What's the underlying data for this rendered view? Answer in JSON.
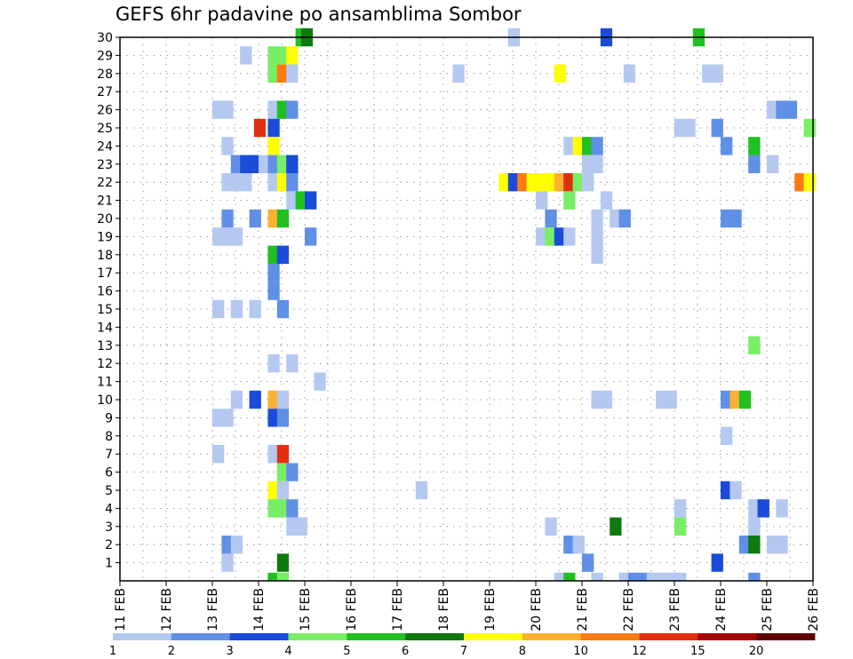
{
  "title": "GEFS 6hr padavine po ansamblima Sombor",
  "chart_data": {
    "type": "heatmap",
    "title": "GEFS 6hr padavine po ansamblima Sombor",
    "x_tick_labels": [
      "11 FEB",
      "12 FEB",
      "13 FEB",
      "14 FEB",
      "15 FEB",
      "16 FEB",
      "17 FEB",
      "18 FEB",
      "19 FEB",
      "20 FEB",
      "21 FEB",
      "22 FEB",
      "23 FEB",
      "24 FEB",
      "25 FEB",
      "26 FEB"
    ],
    "y_tick_labels": [
      "1",
      "2",
      "3",
      "4",
      "5",
      "6",
      "7",
      "8",
      "9",
      "10",
      "11",
      "12",
      "13",
      "14",
      "15",
      "16",
      "17",
      "18",
      "19",
      "20",
      "21",
      "22",
      "23",
      "24",
      "25",
      "26",
      "27",
      "28",
      "29",
      "30"
    ],
    "x_range": [
      "11 FEB 00Z",
      "26 FEB 00Z"
    ],
    "y_range": [
      0,
      30
    ],
    "step": "6hr",
    "grid": true,
    "legend_position": "bottom",
    "colorbar": {
      "labels": [
        "1",
        "2",
        "3",
        "4",
        "5",
        "6",
        "7",
        "8",
        "10",
        "12",
        "15",
        "20"
      ],
      "colors": [
        "#b4c8f0",
        "#6090e6",
        "#1a4cd9",
        "#78ee64",
        "#20c020",
        "#0e7a0e",
        "#ffff00",
        "#ffb030",
        "#ff7a10",
        "#e03010",
        "#a50000",
        "#600000"
      ]
    },
    "cells": [
      [
        14.8,
        30,
        5
      ],
      [
        14.92,
        30,
        6
      ],
      [
        19.4,
        30,
        1
      ],
      [
        21.4,
        30,
        3
      ],
      [
        23.4,
        30,
        5
      ],
      [
        13.6,
        29,
        1
      ],
      [
        14.2,
        29,
        4
      ],
      [
        14.4,
        29,
        4
      ],
      [
        14.6,
        29,
        7
      ],
      [
        14.2,
        28,
        4
      ],
      [
        14.4,
        28,
        9
      ],
      [
        14.6,
        28,
        1
      ],
      [
        18.2,
        28,
        1
      ],
      [
        20.4,
        28,
        7
      ],
      [
        21.9,
        28,
        1
      ],
      [
        23.6,
        28,
        1
      ],
      [
        23.8,
        28,
        1
      ],
      [
        13.0,
        26,
        1
      ],
      [
        13.2,
        26,
        1
      ],
      [
        14.2,
        26,
        1
      ],
      [
        14.4,
        26,
        5
      ],
      [
        14.6,
        26,
        2
      ],
      [
        25.0,
        26,
        1
      ],
      [
        25.2,
        26,
        2
      ],
      [
        25.4,
        26,
        2
      ],
      [
        13.9,
        25,
        10
      ],
      [
        14.2,
        25,
        3
      ],
      [
        23.0,
        25,
        1
      ],
      [
        23.2,
        25,
        1
      ],
      [
        23.8,
        25,
        2
      ],
      [
        25.8,
        25,
        4
      ],
      [
        13.2,
        24,
        1
      ],
      [
        14.2,
        24,
        7
      ],
      [
        20.6,
        24,
        1
      ],
      [
        20.8,
        24,
        7
      ],
      [
        21.0,
        24,
        5
      ],
      [
        21.2,
        24,
        2
      ],
      [
        24.0,
        24,
        2
      ],
      [
        24.6,
        24,
        5
      ],
      [
        13.4,
        23,
        2
      ],
      [
        13.6,
        23,
        3
      ],
      [
        13.8,
        23,
        3
      ],
      [
        14.0,
        23,
        1
      ],
      [
        14.2,
        23,
        2
      ],
      [
        14.4,
        23,
        4
      ],
      [
        14.6,
        23,
        3
      ],
      [
        21.0,
        23,
        1
      ],
      [
        21.2,
        23,
        1
      ],
      [
        24.6,
        23,
        2
      ],
      [
        25.0,
        23,
        1
      ],
      [
        13.2,
        22,
        1
      ],
      [
        13.4,
        22,
        1
      ],
      [
        13.6,
        22,
        1
      ],
      [
        14.2,
        22,
        1
      ],
      [
        14.4,
        22,
        7
      ],
      [
        14.6,
        22,
        2
      ],
      [
        19.2,
        22,
        7
      ],
      [
        19.4,
        22,
        3
      ],
      [
        19.6,
        22,
        9
      ],
      [
        19.8,
        22,
        7
      ],
      [
        20.0,
        22,
        7
      ],
      [
        20.2,
        22,
        7
      ],
      [
        20.4,
        22,
        8
      ],
      [
        20.6,
        22,
        10
      ],
      [
        20.8,
        22,
        4
      ],
      [
        21.0,
        22,
        1
      ],
      [
        25.6,
        22,
        9
      ],
      [
        25.8,
        22,
        7
      ],
      [
        14.6,
        21,
        1
      ],
      [
        14.8,
        21,
        5
      ],
      [
        15.0,
        21,
        3
      ],
      [
        20.0,
        21,
        1
      ],
      [
        20.6,
        21,
        4
      ],
      [
        21.4,
        21,
        1
      ],
      [
        13.2,
        20,
        2
      ],
      [
        13.8,
        20,
        2
      ],
      [
        14.2,
        20,
        8
      ],
      [
        14.4,
        20,
        5
      ],
      [
        20.2,
        20,
        2
      ],
      [
        21.2,
        20,
        1
      ],
      [
        21.6,
        20,
        1
      ],
      [
        21.8,
        20,
        2
      ],
      [
        24.0,
        20,
        2
      ],
      [
        24.2,
        20,
        2
      ],
      [
        13.0,
        19,
        1
      ],
      [
        13.2,
        19,
        1
      ],
      [
        13.4,
        19,
        1
      ],
      [
        15.0,
        19,
        2
      ],
      [
        20.0,
        19,
        1
      ],
      [
        20.2,
        19,
        4
      ],
      [
        20.4,
        19,
        3
      ],
      [
        20.6,
        19,
        1
      ],
      [
        21.2,
        19,
        1
      ],
      [
        14.2,
        18,
        5
      ],
      [
        14.4,
        18,
        3
      ],
      [
        21.2,
        18,
        1
      ],
      [
        14.2,
        17,
        2
      ],
      [
        14.2,
        16,
        2
      ],
      [
        13.0,
        15,
        1
      ],
      [
        13.4,
        15,
        1
      ],
      [
        13.8,
        15,
        1
      ],
      [
        14.4,
        15,
        2
      ],
      [
        24.6,
        13,
        4
      ],
      [
        14.2,
        12,
        1
      ],
      [
        14.6,
        12,
        1
      ],
      [
        15.2,
        11,
        1
      ],
      [
        13.4,
        10,
        1
      ],
      [
        13.8,
        10,
        3
      ],
      [
        14.2,
        10,
        8
      ],
      [
        14.4,
        10,
        1
      ],
      [
        21.2,
        10,
        1
      ],
      [
        21.4,
        10,
        1
      ],
      [
        22.6,
        10,
        1
      ],
      [
        22.8,
        10,
        1
      ],
      [
        24.0,
        10,
        2
      ],
      [
        24.2,
        10,
        8
      ],
      [
        24.4,
        10,
        5
      ],
      [
        13.0,
        9,
        1
      ],
      [
        13.2,
        9,
        1
      ],
      [
        14.2,
        9,
        3
      ],
      [
        14.4,
        9,
        2
      ],
      [
        24.0,
        8,
        1
      ],
      [
        13.0,
        7,
        1
      ],
      [
        14.2,
        7,
        1
      ],
      [
        14.4,
        7,
        10
      ],
      [
        14.4,
        6,
        4
      ],
      [
        14.6,
        6,
        2
      ],
      [
        14.2,
        5,
        7
      ],
      [
        14.4,
        5,
        1
      ],
      [
        17.4,
        5,
        1
      ],
      [
        24.0,
        5,
        3
      ],
      [
        24.2,
        5,
        1
      ],
      [
        14.2,
        4,
        4
      ],
      [
        14.4,
        4,
        4
      ],
      [
        14.6,
        4,
        2
      ],
      [
        23.0,
        4,
        1
      ],
      [
        24.6,
        4,
        1
      ],
      [
        24.8,
        4,
        3
      ],
      [
        25.2,
        4,
        1
      ],
      [
        14.6,
        3,
        1
      ],
      [
        14.8,
        3,
        1
      ],
      [
        20.2,
        3,
        1
      ],
      [
        21.6,
        3,
        6
      ],
      [
        23.0,
        3,
        4
      ],
      [
        24.6,
        3,
        1
      ],
      [
        13.2,
        2,
        2
      ],
      [
        13.4,
        2,
        1
      ],
      [
        20.6,
        2,
        2
      ],
      [
        20.8,
        2,
        1
      ],
      [
        24.4,
        2,
        2
      ],
      [
        24.6,
        2,
        6
      ],
      [
        25.0,
        2,
        1
      ],
      [
        25.2,
        2,
        1
      ],
      [
        13.2,
        1,
        1
      ],
      [
        14.4,
        1,
        6
      ],
      [
        21.0,
        1,
        2
      ],
      [
        23.8,
        1,
        3
      ],
      [
        14.2,
        0,
        5
      ],
      [
        14.4,
        0,
        4
      ],
      [
        20.4,
        0,
        1
      ],
      [
        20.6,
        0,
        5
      ],
      [
        21.2,
        0,
        1
      ],
      [
        21.8,
        0,
        1
      ],
      [
        22.0,
        0,
        2
      ],
      [
        22.2,
        0,
        2
      ],
      [
        22.4,
        0,
        1
      ],
      [
        22.6,
        0,
        1
      ],
      [
        22.8,
        0,
        1
      ],
      [
        23.0,
        0,
        1
      ],
      [
        24.6,
        0,
        2
      ]
    ]
  }
}
